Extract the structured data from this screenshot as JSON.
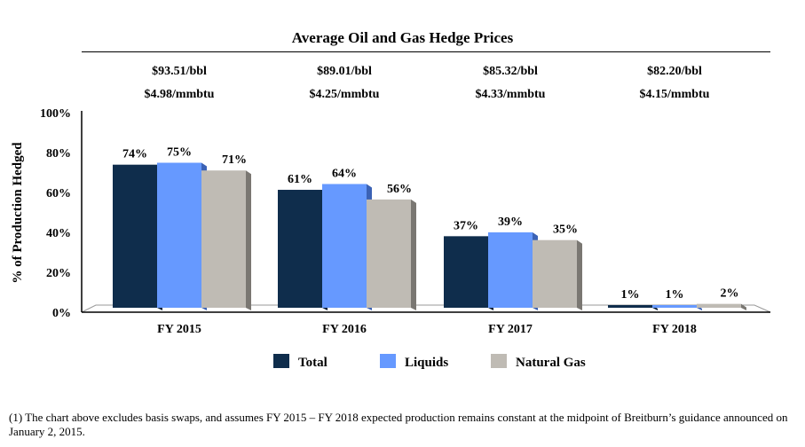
{
  "chart_data": {
    "type": "bar",
    "title": "Average Oil and Gas Hedge Prices",
    "ylabel": "% of Production Hedged",
    "xlabel": "",
    "ylim": [
      0,
      100
    ],
    "yticks": [
      "0%",
      "20%",
      "40%",
      "60%",
      "80%",
      "100%"
    ],
    "categories": [
      "FY 2015",
      "FY 2016",
      "FY 2017",
      "FY 2018"
    ],
    "prices": [
      {
        "oil": "$93.51/bbl",
        "gas": "$4.98/mmbtu"
      },
      {
        "oil": "$89.01/bbl",
        "gas": "$4.25/mmbtu"
      },
      {
        "oil": "$85.32/bbl",
        "gas": "$4.33/mmbtu"
      },
      {
        "oil": "$82.20/bbl",
        "gas": "$4.15/mmbtu"
      }
    ],
    "series": [
      {
        "name": "Total",
        "color": "#0f2d4c",
        "side": "#0a1f36",
        "values": [
          74,
          61,
          37,
          1
        ],
        "labels": [
          "74%",
          "61%",
          "37%",
          "1%"
        ]
      },
      {
        "name": "Liquids",
        "color": "#6699ff",
        "side": "#3b62b5",
        "values": [
          75,
          64,
          39,
          1
        ],
        "labels": [
          "75%",
          "64%",
          "39%",
          "1%"
        ]
      },
      {
        "name": "Natural Gas",
        "color": "#bfbbb4",
        "side": "#7a7772",
        "values": [
          71,
          56,
          35,
          2
        ],
        "labels": [
          "71%",
          "56%",
          "35%",
          "2%"
        ]
      }
    ],
    "legend": "bottom"
  },
  "footnote": "(1) The chart above excludes basis swaps, and assumes FY 2015 – FY 2018 expected production remains constant at  the midpoint of Breitburn’s guidance announced on January 2, 2015."
}
